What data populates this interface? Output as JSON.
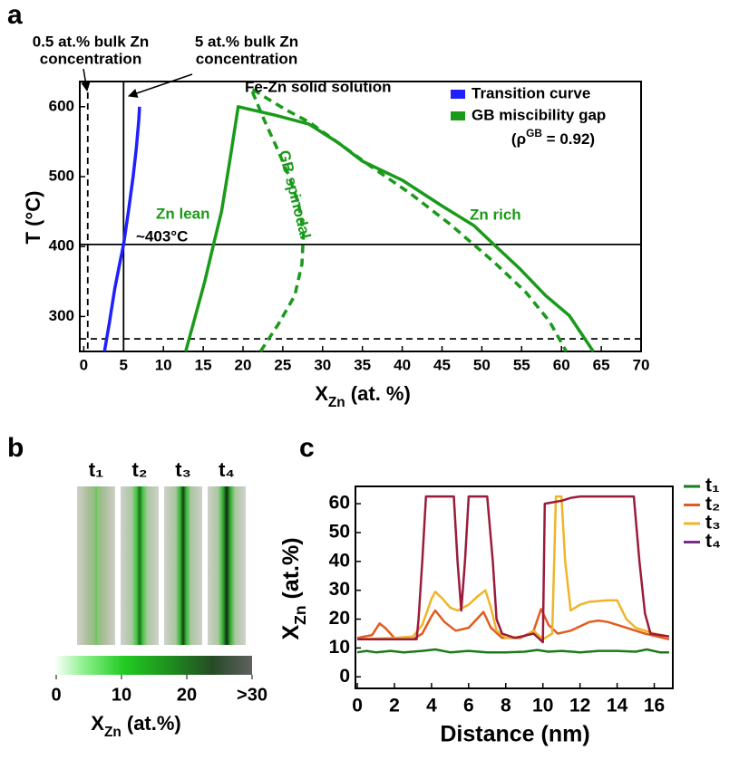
{
  "chart_data": [
    {
      "type": "line",
      "label": "a",
      "x_label": {
        "main": "X",
        "sub": "Zn",
        "rest": " (at. %)"
      },
      "y_label": "T (°C)",
      "xlim": [
        -0.5,
        70
      ],
      "ylim": [
        250,
        636
      ],
      "xticks": [
        0,
        5,
        10,
        15,
        20,
        25,
        30,
        35,
        40,
        45,
        50,
        55,
        60,
        65,
        70
      ],
      "yticks": [
        300,
        400,
        500,
        600
      ],
      "legend_loc": "upper right",
      "series": [
        {
          "name": "Transition curve",
          "color": "#1f1fff",
          "dash": false,
          "x": [
            2.6,
            3.2,
            3.9,
            4.5,
            5.0,
            5.6,
            6.2,
            6.6,
            6.9,
            7.0
          ],
          "values": [
            250,
            290,
            340,
            375,
            403,
            450,
            500,
            540,
            580,
            600
          ]
        },
        {
          "name": "GB miscibility gap",
          "color": "#1a9a1a",
          "dash": false,
          "x": [
            12.8,
            14,
            15.2,
            16.3,
            17.3,
            18.3,
            19.4,
            24,
            28.3,
            32,
            35,
            40,
            45,
            49,
            51.5,
            54.8,
            58,
            61,
            64
          ],
          "values": [
            250,
            300,
            350,
            403,
            450,
            520,
            600,
            588,
            575,
            548,
            522,
            495,
            458,
            430,
            403,
            368,
            330,
            301,
            250
          ]
        },
        {
          "color": "#1a9a1a",
          "dash": true,
          "x": [
            22.2,
            24.5,
            26.5,
            27.4,
            27.6,
            27.0,
            25.8,
            24.3,
            22.7,
            21.0,
            23.0,
            25.5,
            28.3,
            32,
            36,
            41,
            46,
            51.5,
            55.5,
            58.5,
            60.6
          ],
          "values": [
            250,
            290,
            330,
            375,
            420,
            460,
            500,
            540,
            580,
            626,
            612,
            595,
            578,
            548,
            515,
            476,
            432,
            378,
            335,
            293,
            250
          ]
        }
      ],
      "legend_note": {
        "main": "(ρ",
        "sup": "GB",
        "rest": " = 0.92)"
      },
      "reference_lines": [
        {
          "axis": "x",
          "value": 0.5,
          "dash": true
        },
        {
          "axis": "x",
          "value": 5,
          "dash": false
        },
        {
          "axis": "y",
          "value": 403,
          "dash": false
        },
        {
          "axis": "y",
          "value": 268,
          "dash": true
        }
      ],
      "annotations": [
        {
          "lines": [
            "0.5 at.% bulk Zn",
            "concentration"
          ],
          "color": "#000000"
        },
        {
          "lines": [
            "5 at.% bulk Zn",
            "concentration"
          ],
          "color": "#000000"
        },
        {
          "lines": [
            "Fe-Zn solid solution"
          ],
          "color": "#000000"
        },
        {
          "lines": [
            "Zn lean"
          ],
          "color": "#1a9a1a"
        },
        {
          "lines": [
            "GB spinodal"
          ],
          "color": "#1a9a1a"
        },
        {
          "lines": [
            "Zn rich"
          ],
          "color": "#1a9a1a"
        },
        {
          "lines": [
            "~403°C"
          ],
          "color": "#000000"
        }
      ]
    },
    {
      "type": "image-strips",
      "label": "b",
      "panels": [
        "t₁",
        "t₂",
        "t₃",
        "t₄"
      ],
      "colorbar": {
        "lim": [
          0,
          30
        ],
        "ticks": [
          0,
          10,
          20,
          {
            "value": 30,
            "label": ">30"
          }
        ],
        "label": {
          "main": "X",
          "sub": "Zn",
          "rest": " (at.%)"
        }
      }
    },
    {
      "type": "line",
      "label": "c",
      "x_label": "Distance (nm)",
      "y_label": {
        "main": "X",
        "sub": "Zn",
        "rest": " (at.%)"
      },
      "xlim": [
        -0.1,
        17
      ],
      "ylim": [
        -4,
        66
      ],
      "xticks": [
        0,
        2,
        4,
        6,
        8,
        10,
        12,
        14,
        16
      ],
      "yticks": [
        0,
        10,
        20,
        30,
        40,
        50,
        60
      ],
      "legend_loc": "outside right",
      "series": [
        {
          "name": "t₁",
          "color": "#1a7a1a",
          "legend_color": "#1a7a1a",
          "dash": false,
          "x": [
            0,
            0.5,
            1,
            1.8,
            2.5,
            3.5,
            4.2,
            5,
            6,
            7,
            8,
            9,
            9.7,
            10.3,
            11,
            12,
            13,
            14,
            15,
            15.6,
            16.3,
            16.8
          ],
          "values": [
            8.5,
            9,
            8.5,
            9,
            8.5,
            9,
            9.5,
            8.5,
            9,
            8.5,
            8.5,
            8.7,
            9.3,
            8.7,
            9,
            8.5,
            9,
            9,
            8.7,
            9.5,
            8.5,
            8.5
          ]
        },
        {
          "name": "t₂",
          "color": "#e05c1f",
          "legend_color": "#e05c1f",
          "dash": false,
          "x": [
            0,
            0.8,
            1.2,
            1.5,
            2.0,
            3.0,
            3.5,
            4.0,
            4.2,
            4.7,
            5.3,
            6.0,
            6.8,
            7.2,
            7.8,
            8.8,
            9.5,
            9.9,
            10.3,
            10.8,
            11.5,
            12.5,
            13.0,
            13.5,
            14.5,
            15.5,
            16.8
          ],
          "values": [
            13.5,
            14.5,
            18.5,
            17,
            13.5,
            13,
            15,
            21,
            23,
            19,
            16,
            17,
            22.5,
            17,
            13.5,
            13.5,
            16,
            23.5,
            18,
            15,
            16,
            19,
            19.5,
            19,
            17,
            15,
            13
          ]
        },
        {
          "name": "t₃",
          "color": "#f0b42a",
          "legend_color": "#f0b42a",
          "dash": false,
          "x": [
            0,
            2,
            3,
            3.5,
            4.0,
            4.2,
            4.6,
            5.0,
            5.4,
            6.0,
            6.5,
            6.9,
            7.2,
            7.5,
            8.0,
            9.0,
            9.5,
            10.0,
            10.5,
            10.7,
            11.0,
            11.2,
            11.5,
            12.0,
            12.5,
            13.5,
            14.0,
            14.5,
            15.0,
            16.0,
            16.8
          ],
          "values": [
            13,
            13.5,
            14,
            18,
            27,
            29.5,
            27,
            24,
            23,
            25,
            28,
            30,
            24,
            16,
            13.5,
            14,
            16,
            13,
            15,
            62.5,
            62.5,
            40,
            23,
            25,
            26,
            26.5,
            26.5,
            20,
            17,
            15,
            14
          ]
        },
        {
          "name": "t₄",
          "color": "#9b1b3a",
          "legend_color": "#7b2d8e",
          "dash": false,
          "x": [
            0,
            3.2,
            3.3,
            3.5,
            3.7,
            5.2,
            5.4,
            5.6,
            5.8,
            6.0,
            7.0,
            7.3,
            7.5,
            7.8,
            8.5,
            9.5,
            10.0,
            10.1,
            11.0,
            11.5,
            12.0,
            14.9,
            15.2,
            15.5,
            15.8,
            16.8
          ],
          "values": [
            13,
            13,
            20,
            40,
            62.5,
            62.5,
            40,
            23,
            40,
            62.5,
            62.5,
            40,
            20,
            15,
            13.5,
            15,
            12,
            60,
            61,
            62,
            62.5,
            62.5,
            40,
            22,
            15,
            14
          ]
        }
      ]
    }
  ]
}
